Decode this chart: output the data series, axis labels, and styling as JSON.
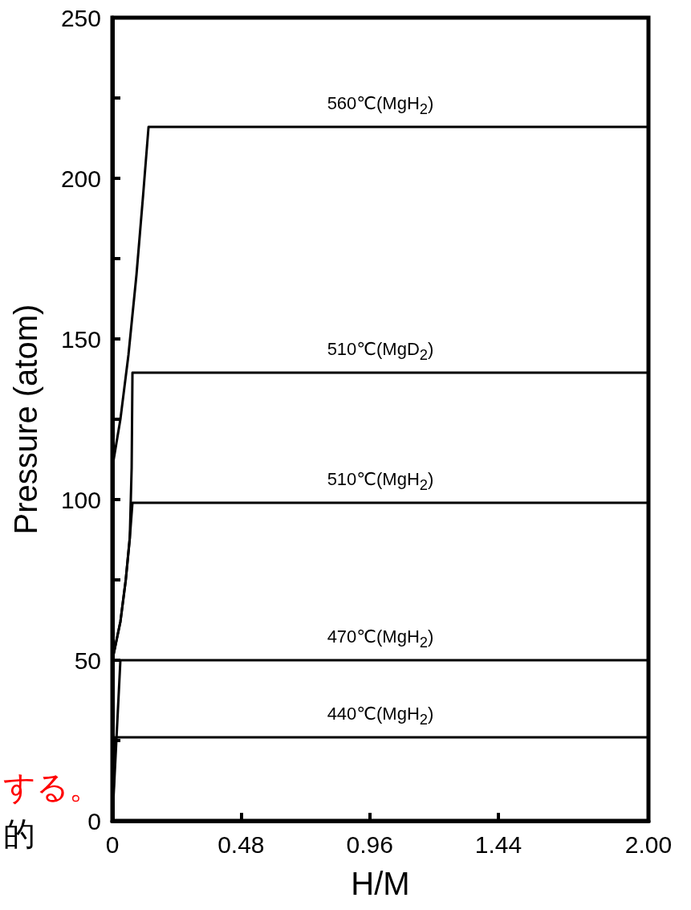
{
  "chart_data": {
    "type": "line",
    "xlabel": "H/M",
    "ylabel": "Pressure (atom)",
    "xlim": [
      0,
      2
    ],
    "ylim": [
      0,
      250
    ],
    "xticks": [
      {
        "value": 0,
        "label": "0"
      },
      0.48,
      0.96,
      1.44,
      {
        "value": 2,
        "label": "2.00"
      }
    ],
    "yticks": [
      0,
      {
        "value": 25,
        "label": null
      },
      50,
      {
        "value": 75,
        "label": null
      },
      100,
      {
        "value": 125,
        "label": null
      },
      150,
      {
        "value": 175,
        "label": null
      },
      200,
      {
        "value": 225,
        "label": null
      },
      250
    ],
    "grid": false,
    "legend": false,
    "marker": "none",
    "line_style": "solid",
    "annotations": [
      "する。",
      "的"
    ],
    "series": [
      {
        "name": "560℃(MgH$_{2}$)",
        "color": "#000000",
        "x": [
          0,
          0.03,
          0.06,
          0.09,
          0.115,
          0.135,
          2
        ],
        "values": [
          110,
          125,
          145,
          170,
          195,
          216,
          216
        ]
      },
      {
        "name": "510℃(MgD$_{2}$)",
        "color": "#000000",
        "x": [
          0,
          0.03,
          0.05,
          0.065,
          0.072,
          0.075,
          2
        ],
        "values": [
          50,
          62,
          75,
          88,
          110,
          139.5,
          139.5
        ]
      },
      {
        "name": "510℃(MgH$_{2}$)",
        "color": "#000000",
        "x": [
          0,
          0.03,
          0.05,
          0.065,
          0.075,
          2
        ],
        "values": [
          50,
          62,
          75,
          88,
          99,
          99
        ]
      },
      {
        "name": "470℃(MgH$_{2}$)",
        "color": "#000000",
        "x": [
          0,
          0.03,
          2
        ],
        "values": [
          0,
          50,
          50
        ]
      },
      {
        "name": "440℃(MgH$_{2}$)",
        "color": "#000000",
        "x": [
          0,
          0.012,
          2
        ],
        "values": [
          0,
          26,
          26
        ]
      }
    ]
  }
}
